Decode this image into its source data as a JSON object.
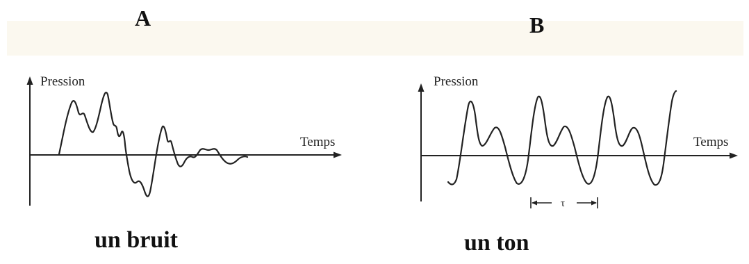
{
  "panels": [
    {
      "letter": "A",
      "y_axis_label": "Pression",
      "x_axis_label": "Temps",
      "caption": "un bruit"
    },
    {
      "letter": "B",
      "y_axis_label": "Pression",
      "x_axis_label": "Temps",
      "caption": "un ton",
      "period_symbol": "τ"
    }
  ],
  "colors": {
    "ink": "#222222",
    "background": "#ffffff",
    "paper_tint": "#f4efdc"
  }
}
